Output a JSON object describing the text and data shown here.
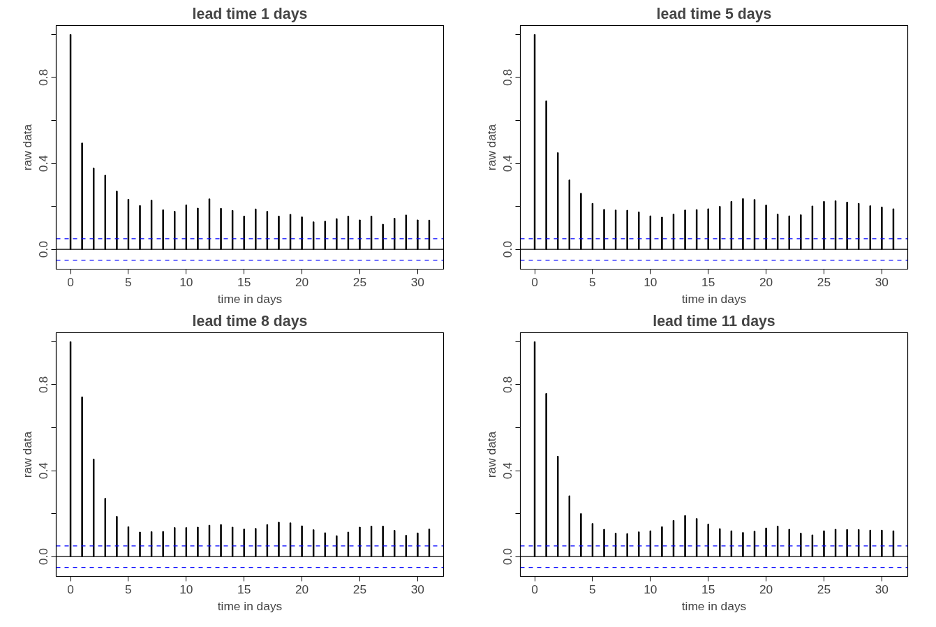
{
  "chart_data": [
    {
      "type": "bar",
      "title": "lead time 1 days",
      "xlabel": "time in days",
      "ylabel": "raw data",
      "x": [
        0,
        1,
        2,
        3,
        4,
        5,
        6,
        7,
        8,
        9,
        10,
        11,
        12,
        13,
        14,
        15,
        16,
        17,
        18,
        19,
        20,
        21,
        22,
        23,
        24,
        25,
        26,
        27,
        28,
        29,
        30,
        31
      ],
      "series": [
        {
          "color": "#000000",
          "values": [
            1.0,
            0.495,
            0.378,
            0.345,
            0.271,
            0.233,
            0.204,
            0.229,
            0.184,
            0.177,
            0.207,
            0.192,
            0.235,
            0.191,
            0.181,
            0.155,
            0.188,
            0.177,
            0.155,
            0.163,
            0.151,
            0.128,
            0.131,
            0.143,
            0.155,
            0.137,
            0.155,
            0.117,
            0.145,
            0.16,
            0.137,
            0.136
          ]
        }
      ],
      "xlim": [
        -1.24,
        32.24
      ],
      "ylim": [
        -0.092,
        1.042
      ],
      "xticks": [
        0,
        5,
        10,
        15,
        20,
        25,
        30
      ],
      "yticks": [
        {
          "value": 0,
          "label": "0.0"
        },
        {
          "value": 0.2,
          "label": null
        },
        {
          "value": 0.4,
          "label": "0.4"
        },
        {
          "value": 0.6,
          "label": null
        },
        {
          "value": 0.8,
          "label": "0.8"
        },
        {
          "value": 1.0,
          "label": null
        }
      ],
      "ref_lines": [
        {
          "axis": "y",
          "value": 0,
          "color": "#000000",
          "line_style": "solid"
        },
        {
          "axis": "y",
          "value": 0.05,
          "color": "#0000ff",
          "line_style": "dashed"
        },
        {
          "axis": "y",
          "value": -0.05,
          "color": "#0000ff",
          "line_style": "dashed"
        }
      ],
      "grid": false
    },
    {
      "type": "bar",
      "title": "lead time 5 days",
      "xlabel": "time in days",
      "ylabel": "raw data",
      "x": [
        0,
        1,
        2,
        3,
        4,
        5,
        6,
        7,
        8,
        9,
        10,
        11,
        12,
        13,
        14,
        15,
        16,
        17,
        18,
        19,
        20,
        21,
        22,
        23,
        24,
        25,
        26,
        27,
        28,
        29,
        30,
        31
      ],
      "series": [
        {
          "color": "#000000",
          "values": [
            1.0,
            0.691,
            0.45,
            0.323,
            0.261,
            0.214,
            0.186,
            0.183,
            0.182,
            0.174,
            0.156,
            0.15,
            0.164,
            0.183,
            0.185,
            0.189,
            0.2,
            0.223,
            0.236,
            0.232,
            0.206,
            0.164,
            0.156,
            0.161,
            0.202,
            0.223,
            0.226,
            0.22,
            0.214,
            0.203,
            0.197,
            0.189
          ]
        }
      ],
      "xlim": [
        -1.24,
        32.24
      ],
      "ylim": [
        -0.092,
        1.042
      ],
      "xticks": [
        0,
        5,
        10,
        15,
        20,
        25,
        30
      ],
      "yticks": [
        {
          "value": 0,
          "label": "0.0"
        },
        {
          "value": 0.2,
          "label": null
        },
        {
          "value": 0.4,
          "label": "0.4"
        },
        {
          "value": 0.6,
          "label": null
        },
        {
          "value": 0.8,
          "label": "0.8"
        },
        {
          "value": 1.0,
          "label": null
        }
      ],
      "ref_lines": [
        {
          "axis": "y",
          "value": 0,
          "color": "#000000",
          "line_style": "solid"
        },
        {
          "axis": "y",
          "value": 0.05,
          "color": "#0000ff",
          "line_style": "dashed"
        },
        {
          "axis": "y",
          "value": -0.05,
          "color": "#0000ff",
          "line_style": "dashed"
        }
      ],
      "grid": false
    },
    {
      "type": "bar",
      "title": "lead time 8 days",
      "xlabel": "time in days",
      "ylabel": "raw data",
      "x": [
        0,
        1,
        2,
        3,
        4,
        5,
        6,
        7,
        8,
        9,
        10,
        11,
        12,
        13,
        14,
        15,
        16,
        17,
        18,
        19,
        20,
        21,
        22,
        23,
        24,
        25,
        26,
        27,
        28,
        29,
        30,
        31
      ],
      "series": [
        {
          "color": "#000000",
          "values": [
            1.0,
            0.743,
            0.454,
            0.271,
            0.187,
            0.139,
            0.114,
            0.116,
            0.117,
            0.135,
            0.135,
            0.137,
            0.146,
            0.149,
            0.137,
            0.128,
            0.131,
            0.149,
            0.16,
            0.157,
            0.143,
            0.125,
            0.111,
            0.097,
            0.114,
            0.137,
            0.142,
            0.142,
            0.122,
            0.099,
            0.11,
            0.128
          ]
        }
      ],
      "xlim": [
        -1.24,
        32.24
      ],
      "ylim": [
        -0.092,
        1.042
      ],
      "xticks": [
        0,
        5,
        10,
        15,
        20,
        25,
        30
      ],
      "yticks": [
        {
          "value": 0,
          "label": "0.0"
        },
        {
          "value": 0.2,
          "label": null
        },
        {
          "value": 0.4,
          "label": "0.4"
        },
        {
          "value": 0.6,
          "label": null
        },
        {
          "value": 0.8,
          "label": "0.8"
        },
        {
          "value": 1.0,
          "label": null
        }
      ],
      "ref_lines": [
        {
          "axis": "y",
          "value": 0,
          "color": "#000000",
          "line_style": "solid"
        },
        {
          "axis": "y",
          "value": 0.05,
          "color": "#0000ff",
          "line_style": "dashed"
        },
        {
          "axis": "y",
          "value": -0.05,
          "color": "#0000ff",
          "line_style": "dashed"
        }
      ],
      "grid": false
    },
    {
      "type": "bar",
      "title": "lead time 11 days",
      "xlabel": "time in days",
      "ylabel": "raw data",
      "x": [
        0,
        1,
        2,
        3,
        4,
        5,
        6,
        7,
        8,
        9,
        10,
        11,
        12,
        13,
        14,
        15,
        16,
        17,
        18,
        19,
        20,
        21,
        22,
        23,
        24,
        25,
        26,
        27,
        28,
        29,
        30,
        31
      ],
      "series": [
        {
          "color": "#000000",
          "values": [
            1.0,
            0.759,
            0.467,
            0.283,
            0.2,
            0.154,
            0.127,
            0.109,
            0.107,
            0.115,
            0.12,
            0.139,
            0.168,
            0.191,
            0.177,
            0.151,
            0.13,
            0.12,
            0.112,
            0.118,
            0.133,
            0.142,
            0.127,
            0.109,
            0.101,
            0.12,
            0.127,
            0.126,
            0.126,
            0.123,
            0.123,
            0.12
          ]
        }
      ],
      "xlim": [
        -1.24,
        32.24
      ],
      "ylim": [
        -0.092,
        1.042
      ],
      "xticks": [
        0,
        5,
        10,
        15,
        20,
        25,
        30
      ],
      "yticks": [
        {
          "value": 0,
          "label": "0.0"
        },
        {
          "value": 0.2,
          "label": null
        },
        {
          "value": 0.4,
          "label": "0.4"
        },
        {
          "value": 0.6,
          "label": null
        },
        {
          "value": 0.8,
          "label": "0.8"
        },
        {
          "value": 1.0,
          "label": null
        }
      ],
      "ref_lines": [
        {
          "axis": "y",
          "value": 0,
          "color": "#000000",
          "line_style": "solid"
        },
        {
          "axis": "y",
          "value": 0.05,
          "color": "#0000ff",
          "line_style": "dashed"
        },
        {
          "axis": "y",
          "value": -0.05,
          "color": "#0000ff",
          "line_style": "dashed"
        }
      ],
      "grid": false
    }
  ]
}
